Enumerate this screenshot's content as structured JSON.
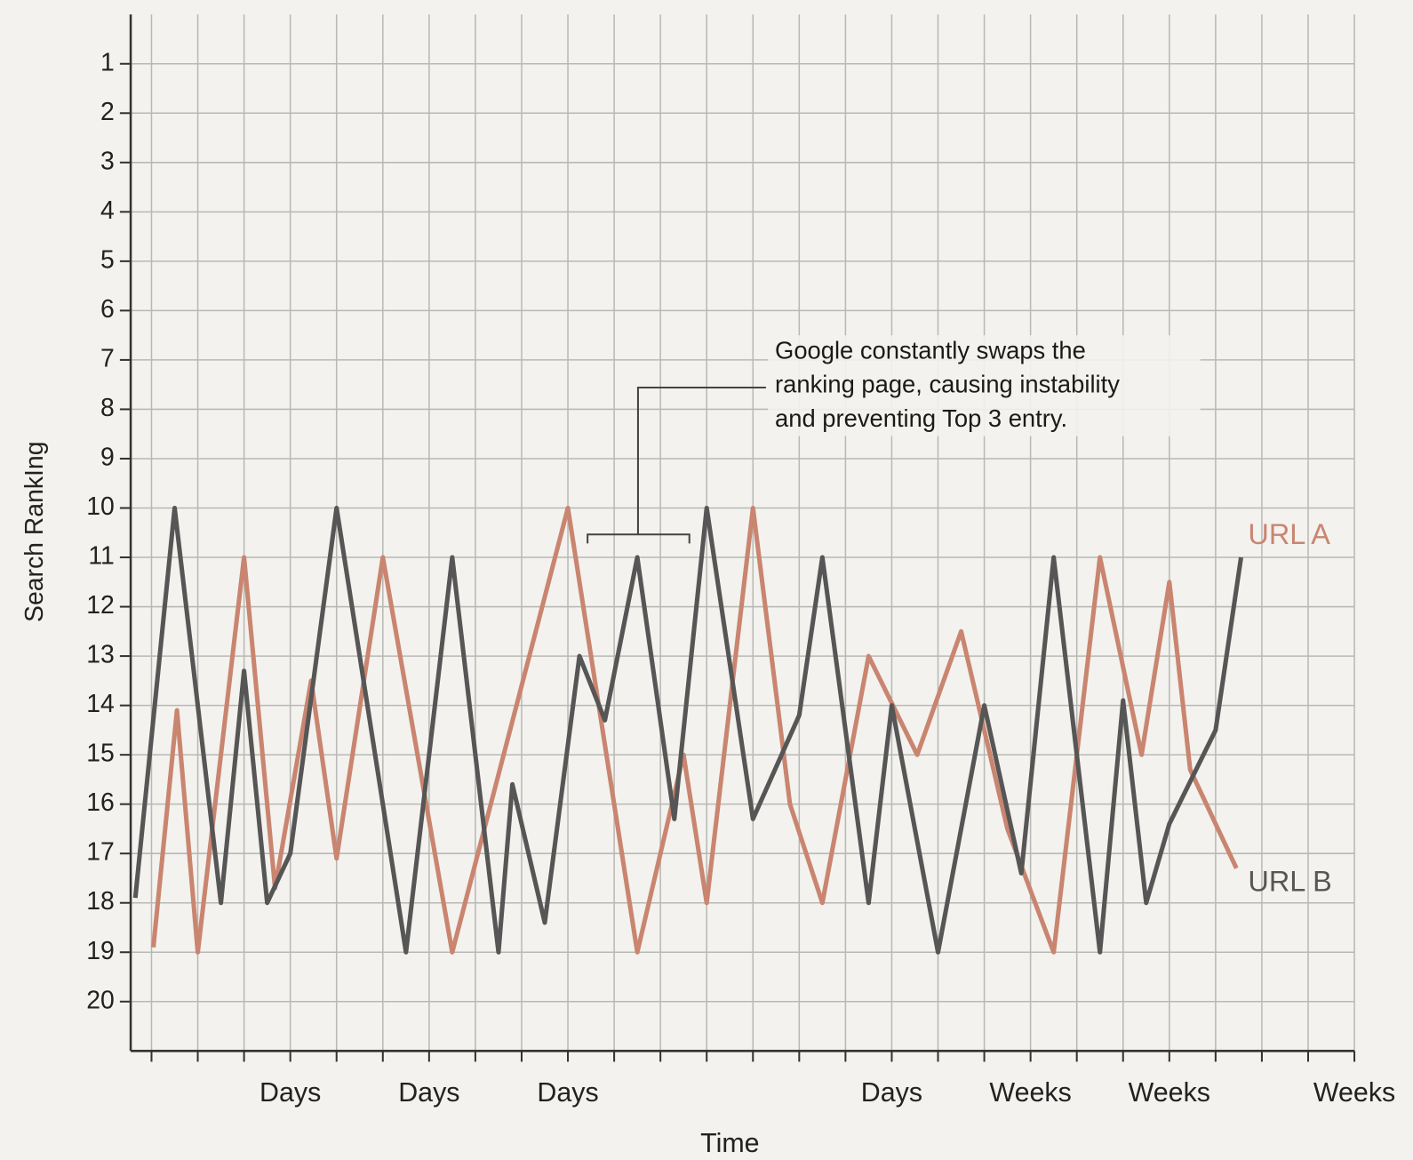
{
  "chart_data": {
    "type": "line",
    "y_label": "Search RankIng",
    "x_label": "Time",
    "ylim": [
      0,
      21
    ],
    "y_inverted": true,
    "yticks": [
      1,
      2,
      3,
      4,
      5,
      6,
      7,
      8,
      9,
      10,
      11,
      12,
      13,
      14,
      15,
      16,
      17,
      18,
      19,
      20
    ],
    "xlim": [
      -0.45,
      26
    ],
    "xticks": [
      0,
      1,
      2,
      3,
      4,
      5,
      6,
      7,
      8,
      9,
      10,
      11,
      12,
      13,
      14,
      15,
      16,
      17,
      18,
      19,
      20,
      21,
      22,
      23,
      24,
      25,
      26
    ],
    "xtick_labels": [
      {
        "value": 3,
        "label": "Days"
      },
      {
        "value": 6,
        "label": "Days"
      },
      {
        "value": 9,
        "label": "Days"
      },
      {
        "value": 16,
        "label": "Days"
      },
      {
        "value": 19,
        "label": "Weeks"
      },
      {
        "value": 22,
        "label": "Weeks"
      },
      {
        "value": 26,
        "label": "Weeks"
      }
    ],
    "grid": true,
    "series": [
      {
        "name": "URL A",
        "color": "#c98570",
        "x": [
          0.04,
          0.55,
          1,
          2,
          2.67,
          3.45,
          4,
          5,
          6.5,
          9,
          10.5,
          11.5,
          12,
          13,
          13.8,
          14.5,
          15.5,
          16.55,
          17.5,
          18.5,
          19.5,
          20.5,
          21.4,
          22,
          22.45,
          23.45
        ],
        "values": [
          18.9,
          14.1,
          19,
          11,
          17.7,
          13.5,
          17.1,
          11,
          19,
          10,
          19,
          15,
          18,
          10,
          16,
          18,
          13,
          15,
          12.5,
          16.5,
          19,
          11,
          15,
          11.5,
          15.3,
          17.3
        ]
      },
      {
        "name": "URL B",
        "color": "#565656",
        "x": [
          -0.35,
          0.5,
          1.5,
          2,
          2.5,
          3,
          4,
          5.5,
          6.5,
          7.5,
          7.8,
          8.5,
          9.25,
          9.8,
          10.5,
          11.3,
          12,
          13,
          14,
          14.5,
          15.5,
          16,
          17,
          18,
          18.8,
          19.5,
          20.5,
          21,
          21.5,
          22,
          23,
          23.55
        ],
        "values": [
          17.9,
          10,
          18,
          13.3,
          18,
          17,
          10,
          19,
          11,
          19,
          15.6,
          18.4,
          13,
          14.3,
          11,
          16.3,
          10,
          16.3,
          14.2,
          11,
          18,
          14,
          19,
          14,
          17.4,
          11,
          19,
          13.9,
          18,
          16.4,
          14.5,
          11
        ]
      }
    ],
    "annotation": [
      "Google constantly swaps the",
      "ranking page, causing instability",
      "and preventing Top 3 entry."
    ]
  }
}
